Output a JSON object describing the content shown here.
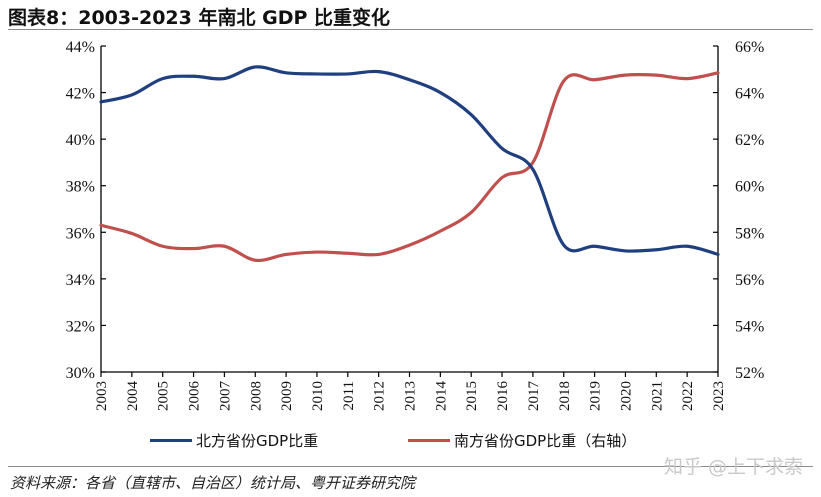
{
  "title": "图表8：2003-2023 年南北 GDP 比重变化",
  "source": "资料来源：各省（直辖市、自治区）统计局、粤开证券研究院",
  "watermark": "知乎 @上下求索",
  "colors": {
    "north": "#1f3f7f",
    "south": "#c0504d",
    "axis": "#000000"
  },
  "chart_data": {
    "type": "line",
    "title": "2003-2023 年南北 GDP 比重变化",
    "xlabel": "",
    "ylabel": "",
    "categories": [
      "2003",
      "2004",
      "2005",
      "2006",
      "2007",
      "2008",
      "2009",
      "2010",
      "2011",
      "2012",
      "2013",
      "2014",
      "2015",
      "2016",
      "2017",
      "2018",
      "2019",
      "2020",
      "2021",
      "2022",
      "2023"
    ],
    "left_axis": {
      "ylim": [
        30,
        44
      ],
      "ticks": [
        "30%",
        "32%",
        "34%",
        "36%",
        "38%",
        "40%",
        "42%",
        "44%"
      ]
    },
    "right_axis": {
      "ylim": [
        52,
        66
      ],
      "ticks": [
        "52%",
        "54%",
        "56%",
        "58%",
        "60%",
        "62%",
        "64%",
        "66%"
      ]
    },
    "series": [
      {
        "name": "北方省份GDP比重",
        "axis": "left",
        "color": "#1f3f7f",
        "values": [
          41.6,
          41.9,
          42.6,
          42.7,
          42.6,
          43.1,
          42.85,
          42.8,
          42.8,
          42.9,
          42.55,
          42.0,
          41.05,
          39.6,
          38.7,
          35.45,
          35.4,
          35.2,
          35.25,
          35.4,
          35.05
        ]
      },
      {
        "name": "南方省份GDP比重（右轴）",
        "axis": "right",
        "color": "#c0504d",
        "values": [
          58.3,
          57.95,
          57.4,
          57.3,
          57.4,
          56.8,
          57.05,
          57.15,
          57.1,
          57.05,
          57.45,
          58.05,
          58.85,
          60.35,
          61.0,
          64.5,
          64.55,
          64.75,
          64.75,
          64.6,
          64.85
        ]
      }
    ],
    "grid": false,
    "legend_position": "bottom"
  },
  "legend": {
    "north_label": "北方省份GDP比重",
    "south_label": "南方省份GDP比重（右轴）"
  }
}
